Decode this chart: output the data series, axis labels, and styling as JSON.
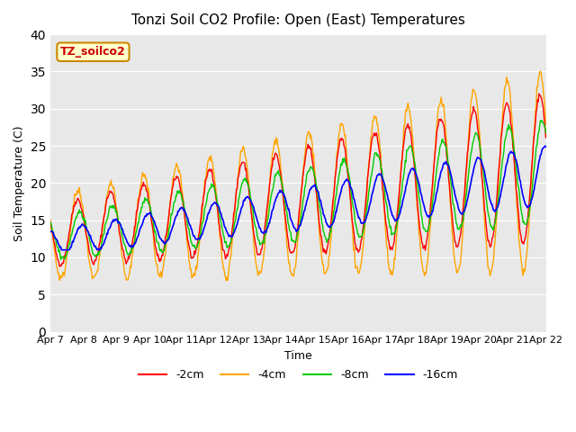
{
  "title": "Tonzi Soil CO2 Profile: Open (East) Temperatures",
  "xlabel": "Time",
  "ylabel": "Soil Temperature (C)",
  "annotation": "TZ_soilco2",
  "ylim": [
    0,
    40
  ],
  "yticks": [
    0,
    5,
    10,
    15,
    20,
    25,
    30,
    35,
    40
  ],
  "legend_labels": [
    "-2cm",
    "-4cm",
    "-8cm",
    "-16cm"
  ],
  "legend_colors": [
    "#ff0000",
    "#ffa500",
    "#00cc00",
    "#0000ff"
  ],
  "x_tick_labels": [
    "Apr 7",
    "Apr 8",
    "Apr 9",
    "Apr 10",
    "Apr 11",
    "Apr 12",
    "Apr 13",
    "Apr 14",
    "Apr 15",
    "Apr 16",
    "Apr 17",
    "Apr 18",
    "Apr 19",
    "Apr 20",
    "Apr 21",
    "Apr 22"
  ],
  "num_days": 15
}
